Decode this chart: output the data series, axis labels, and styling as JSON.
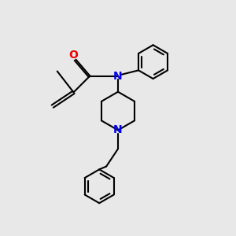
{
  "background_color": "#e8e8e8",
  "bond_color": "#000000",
  "N_color": "#0000ee",
  "O_color": "#ee0000",
  "line_width": 1.5,
  "figsize": [
    3.0,
    3.0
  ],
  "dpi": 100,
  "xlim": [
    0,
    10
  ],
  "ylim": [
    0,
    10
  ]
}
